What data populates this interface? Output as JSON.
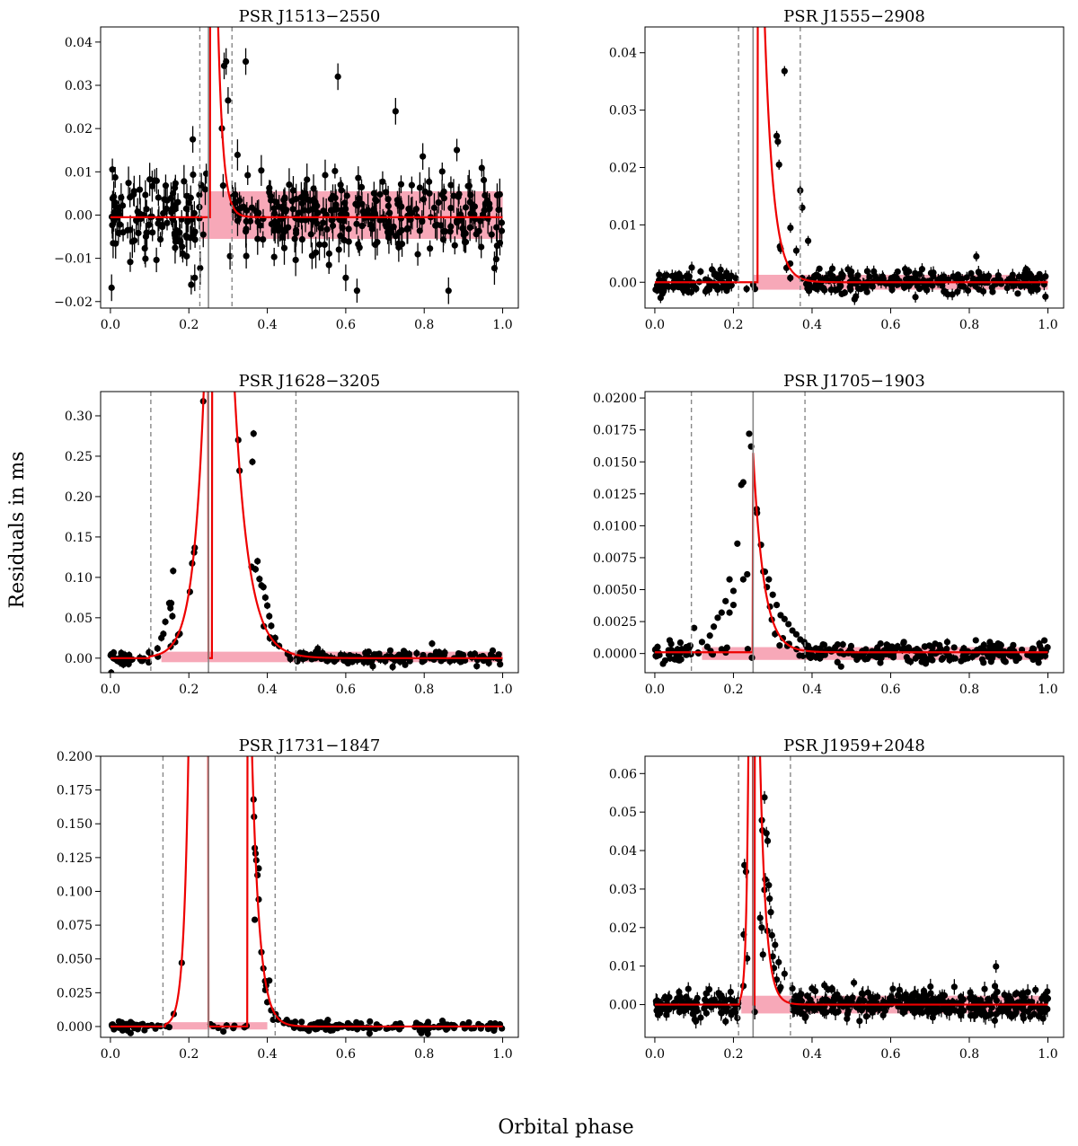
{
  "figure": {
    "ylabel": "Residuals in ms",
    "xlabel": "Orbital phase",
    "colors": {
      "model": "#ee0000",
      "band": "#f7a8b8",
      "points": "#000000",
      "eclipse_center": "#888888",
      "eclipse_edges": "#888888"
    }
  },
  "chart_data": [
    {
      "type": "scatter",
      "title": "PSR J1513−2550",
      "xlim": [
        -0.025,
        1.04
      ],
      "ylim": [
        -0.0215,
        0.0435
      ],
      "xticks": [
        0.0,
        0.2,
        0.4,
        0.6,
        0.8,
        1.0
      ],
      "xtick_labels": [
        "0.0",
        "0.2",
        "0.4",
        "0.6",
        "0.8",
        "1.0"
      ],
      "yticks": [
        -0.02,
        -0.01,
        0.0,
        0.01,
        0.02,
        0.03,
        0.04
      ],
      "ytick_labels": [
        "−0.02",
        "−0.01",
        "0.00",
        "0.01",
        "0.02",
        "0.03",
        "0.04"
      ],
      "eclipse_center": 0.25,
      "eclipse_edges": [
        0.228,
        0.31
      ],
      "band": {
        "x0": 0.23,
        "x1": 1.0,
        "y0": -0.0055,
        "y1": 0.0055
      },
      "model": {
        "baseline": -0.0005,
        "peak_phase": 0.25,
        "rise": {
          "start": 0.25,
          "amp": 0.0,
          "tau": 0.01
        },
        "decay": {
          "start": 0.255,
          "amp": 0.2,
          "tau": 0.013
        }
      },
      "scatter": {
        "n": 420,
        "sigma": 0.0045,
        "err": 0.0028,
        "seed": 11
      },
      "points": [
        [
          0.003,
          -0.0168
        ],
        [
          0.21,
          0.0175
        ],
        [
          0.215,
          -0.0145
        ],
        [
          0.29,
          0.0345
        ],
        [
          0.295,
          0.0355
        ],
        [
          0.3,
          0.0265
        ],
        [
          0.345,
          0.0355
        ],
        [
          0.58,
          0.032
        ],
        [
          0.727,
          0.024
        ],
        [
          0.862,
          -0.0175
        ],
        [
          0.305,
          -0.0095
        ],
        [
          0.6,
          -0.0145
        ]
      ]
    },
    {
      "type": "scatter",
      "title": "PSR J1555−2908",
      "xlim": [
        -0.025,
        1.04
      ],
      "ylim": [
        -0.0045,
        0.0445
      ],
      "xticks": [
        0.0,
        0.2,
        0.4,
        0.6,
        0.8,
        1.0
      ],
      "xtick_labels": [
        "0.0",
        "0.2",
        "0.4",
        "0.6",
        "0.8",
        "1.0"
      ],
      "yticks": [
        0.0,
        0.01,
        0.02,
        0.03,
        0.04
      ],
      "ytick_labels": [
        "0.00",
        "0.01",
        "0.02",
        "0.03",
        "0.04"
      ],
      "eclipse_center": 0.25,
      "eclipse_edges": [
        0.213,
        0.37
      ],
      "band": {
        "x0": 0.25,
        "x1": 1.0,
        "y0": -0.0013,
        "y1": 0.0013
      },
      "model": {
        "baseline": 0.0,
        "peak_phase": 0.25,
        "rise": {
          "start": 0.25,
          "amp": 0.0,
          "tau": 0.01
        },
        "decay": {
          "start": 0.262,
          "amp": 0.1,
          "tau": 0.022
        }
      },
      "scatter": {
        "n": 330,
        "sigma": 0.0011,
        "err": 0.0008,
        "seed": 23
      },
      "points": [
        [
          0.31,
          0.0255
        ],
        [
          0.313,
          0.0245
        ],
        [
          0.316,
          0.0205
        ],
        [
          0.33,
          0.0368
        ],
        [
          0.345,
          0.0095
        ],
        [
          0.36,
          0.0055
        ],
        [
          0.37,
          0.016
        ],
        [
          0.375,
          0.013
        ],
        [
          0.39,
          0.0072
        ],
        [
          0.818,
          0.0045
        ],
        [
          0.335,
          0.0025
        ],
        [
          0.32,
          0.0058
        ]
      ]
    },
    {
      "type": "scatter",
      "title": "PSR J1628−3205",
      "xlim": [
        -0.025,
        1.04
      ],
      "ylim": [
        -0.018,
        0.33
      ],
      "xticks": [
        0.0,
        0.2,
        0.4,
        0.6,
        0.8,
        1.0
      ],
      "xtick_labels": [
        "0.0",
        "0.2",
        "0.4",
        "0.6",
        "0.8",
        "1.0"
      ],
      "yticks": [
        0.0,
        0.05,
        0.1,
        0.15,
        0.2,
        0.25,
        0.3
      ],
      "ytick_labels": [
        "0.00",
        "0.05",
        "0.10",
        "0.15",
        "0.20",
        "0.25",
        "0.30"
      ],
      "eclipse_center": 0.25,
      "eclipse_edges": [
        0.103,
        0.473
      ],
      "band": {
        "x0": 0.13,
        "x1": 1.0,
        "y0": -0.005,
        "y1": 0.008
      },
      "model": {
        "baseline": 0.0,
        "peak_phase": 0.25,
        "rise": {
          "start": 0.1,
          "amp": 0.002,
          "tau": 0.027
        },
        "decay": {
          "start": 0.26,
          "amp": 1.6,
          "tau": 0.036
        }
      },
      "scatter": {
        "n": 210,
        "sigma": 0.004,
        "err": 0.004,
        "seed": 37
      },
      "points": [
        [
          0.14,
          0.045
        ],
        [
          0.15,
          0.068
        ],
        [
          0.153,
          0.062
        ],
        [
          0.155,
          0.068
        ],
        [
          0.158,
          0.052
        ],
        [
          0.16,
          0.108
        ],
        [
          0.13,
          0.025
        ],
        [
          0.135,
          0.03
        ],
        [
          0.165,
          0.02
        ],
        [
          0.12,
          0.012
        ],
        [
          0.326,
          0.27
        ],
        [
          0.365,
          0.278
        ],
        [
          0.362,
          0.243
        ],
        [
          0.36,
          0.113
        ],
        [
          0.37,
          0.11
        ],
        [
          0.375,
          0.12
        ],
        [
          0.38,
          0.098
        ],
        [
          0.385,
          0.09
        ],
        [
          0.39,
          0.088
        ],
        [
          0.395,
          0.075
        ],
        [
          0.4,
          0.065
        ],
        [
          0.405,
          0.052
        ],
        [
          0.41,
          0.04
        ],
        [
          0.42,
          0.025
        ],
        [
          0.43,
          0.015
        ],
        [
          0.002,
          -0.018
        ],
        [
          0.82,
          0.018
        ]
      ]
    },
    {
      "type": "scatter",
      "title": "PSR J1705−1903",
      "xlim": [
        -0.025,
        1.04
      ],
      "ylim": [
        -0.0015,
        0.0205
      ],
      "xticks": [
        0.0,
        0.2,
        0.4,
        0.6,
        0.8,
        1.0
      ],
      "xtick_labels": [
        "0.0",
        "0.2",
        "0.4",
        "0.6",
        "0.8",
        "1.0"
      ],
      "yticks": [
        0.0,
        0.0025,
        0.005,
        0.0075,
        0.01,
        0.0125,
        0.015,
        0.0175,
        0.02
      ],
      "ytick_labels": [
        "0.0000",
        "0.0025",
        "0.0050",
        "0.0075",
        "0.0100",
        "0.0125",
        "0.0150",
        "0.0175",
        "0.0200"
      ],
      "eclipse_center": 0.25,
      "eclipse_edges": [
        0.093,
        0.382
      ],
      "band": {
        "x0": 0.12,
        "x1": 1.0,
        "y0": -0.0005,
        "y1": 0.0005
      },
      "model": {
        "baseline": 0.0001,
        "peak_phase": 0.25,
        "rise": {
          "start": 0.25,
          "amp": 0.0156,
          "tau": 0.036
        },
        "decay": {
          "start": 0.25,
          "amp": 0.0156,
          "tau": 0.027
        }
      },
      "scatter": {
        "n": 300,
        "sigma": 0.0004,
        "err": 0.00022,
        "seed": 41
      },
      "points": [
        [
          0.08,
          0.0005
        ],
        [
          0.1,
          0.002
        ],
        [
          0.12,
          0.0009
        ],
        [
          0.14,
          0.0014
        ],
        [
          0.15,
          0.0021
        ],
        [
          0.16,
          0.0028
        ],
        [
          0.17,
          0.0032
        ],
        [
          0.18,
          0.0041
        ],
        [
          0.19,
          0.0058
        ],
        [
          0.2,
          0.0049
        ],
        [
          0.21,
          0.0086
        ],
        [
          0.22,
          0.0132
        ],
        [
          0.225,
          0.0134
        ],
        [
          0.24,
          0.0172
        ],
        [
          0.245,
          0.0162
        ],
        [
          0.26,
          0.011
        ],
        [
          0.27,
          0.0085
        ],
        [
          0.28,
          0.0064
        ],
        [
          0.285,
          0.0052
        ],
        [
          0.29,
          0.0058
        ],
        [
          0.3,
          0.0046
        ],
        [
          0.31,
          0.0038
        ],
        [
          0.32,
          0.003
        ],
        [
          0.33,
          0.0027
        ],
        [
          0.34,
          0.0023
        ],
        [
          0.35,
          0.0018
        ],
        [
          0.36,
          0.0015
        ],
        [
          0.37,
          0.0011
        ],
        [
          0.38,
          0.0009
        ],
        [
          0.39,
          0.0006
        ],
        [
          0.225,
          0.0058
        ],
        [
          0.235,
          0.0062
        ],
        [
          0.19,
          0.0032
        ],
        [
          0.2,
          0.0038
        ]
      ]
    },
    {
      "type": "scatter",
      "title": "PSR J1731−1847",
      "xlim": [
        -0.025,
        1.04
      ],
      "ylim": [
        -0.008,
        0.2
      ],
      "xticks": [
        0.0,
        0.2,
        0.4,
        0.6,
        0.8,
        1.0
      ],
      "xtick_labels": [
        "0.0",
        "0.2",
        "0.4",
        "0.6",
        "0.8",
        "1.0"
      ],
      "yticks": [
        0.0,
        0.025,
        0.05,
        0.075,
        0.1,
        0.125,
        0.15,
        0.175,
        0.2
      ],
      "ytick_labels": [
        "0.000",
        "0.025",
        "0.050",
        "0.075",
        "0.100",
        "0.125",
        "0.150",
        "0.175",
        "0.200"
      ],
      "eclipse_center": 0.25,
      "eclipse_edges": [
        0.134,
        0.42
      ],
      "band": {
        "x0": 0.14,
        "x1": 0.4,
        "y0": -0.0022,
        "y1": 0.0032
      },
      "model": {
        "baseline": 0.0,
        "peak_phase": 0.25,
        "rise": {
          "start": 0.14,
          "amp": 0.0015,
          "tau": 0.012
        },
        "decay": {
          "start": 0.35,
          "amp": 0.36,
          "tau": 0.019
        }
      },
      "scatter": {
        "n": 190,
        "sigma": 0.0018,
        "err": 0.0018,
        "seed": 53
      },
      "points": [
        [
          0.365,
          0.168
        ],
        [
          0.368,
          0.132
        ],
        [
          0.37,
          0.128
        ],
        [
          0.372,
          0.123
        ],
        [
          0.375,
          0.112
        ],
        [
          0.378,
          0.117
        ],
        [
          0.368,
          0.079
        ],
        [
          0.378,
          0.094
        ],
        [
          0.385,
          0.055
        ],
        [
          0.39,
          0.043
        ],
        [
          0.395,
          0.027
        ],
        [
          0.4,
          0.018
        ],
        [
          0.405,
          0.034
        ],
        [
          0.41,
          0.012
        ],
        [
          0.415,
          0.005
        ]
      ]
    },
    {
      "type": "scatter",
      "title": "PSR J1959+2048",
      "xlim": [
        -0.025,
        1.04
      ],
      "ylim": [
        -0.0085,
        0.0645
      ],
      "xticks": [
        0.0,
        0.2,
        0.4,
        0.6,
        0.8,
        1.0
      ],
      "xtick_labels": [
        "0.0",
        "0.2",
        "0.4",
        "0.6",
        "0.8",
        "1.0"
      ],
      "yticks": [
        0.0,
        0.01,
        0.02,
        0.03,
        0.04,
        0.05,
        0.06
      ],
      "ytick_labels": [
        "0.00",
        "0.01",
        "0.02",
        "0.03",
        "0.04",
        "0.05",
        "0.06"
      ],
      "eclipse_center": 0.25,
      "eclipse_edges": [
        0.213,
        0.345
      ],
      "band": {
        "x0": 0.22,
        "x1": 1.0,
        "y0": -0.0023,
        "y1": 0.0023
      },
      "model": {
        "baseline": 0.0,
        "peak_phase": 0.25,
        "rise": {
          "start": 0.215,
          "amp": 0.001,
          "tau": 0.0055
        },
        "decay": {
          "start": 0.255,
          "amp": 0.15,
          "tau": 0.015
        }
      },
      "scatter": {
        "n": 480,
        "sigma": 0.0017,
        "err": 0.0015,
        "seed": 67
      },
      "points": [
        [
          0.228,
          0.0362
        ],
        [
          0.232,
          0.0345
        ],
        [
          0.226,
          0.0182
        ],
        [
          0.235,
          0.012
        ],
        [
          0.268,
          0.0225
        ],
        [
          0.272,
          0.02
        ],
        [
          0.275,
          0.013
        ],
        [
          0.279,
          0.0538
        ],
        [
          0.281,
          0.0325
        ],
        [
          0.284,
          0.0445
        ],
        [
          0.287,
          0.0425
        ],
        [
          0.29,
          0.031
        ],
        [
          0.292,
          0.0275
        ],
        [
          0.295,
          0.024
        ],
        [
          0.298,
          0.018
        ],
        [
          0.3,
          0.0125
        ],
        [
          0.303,
          0.0095
        ],
        [
          0.306,
          0.0155
        ],
        [
          0.31,
          0.0065
        ],
        [
          0.315,
          0.011
        ],
        [
          0.32,
          0.0045
        ],
        [
          0.33,
          0.008
        ],
        [
          0.35,
          0.0042
        ],
        [
          0.868,
          0.0099
        ]
      ]
    }
  ]
}
